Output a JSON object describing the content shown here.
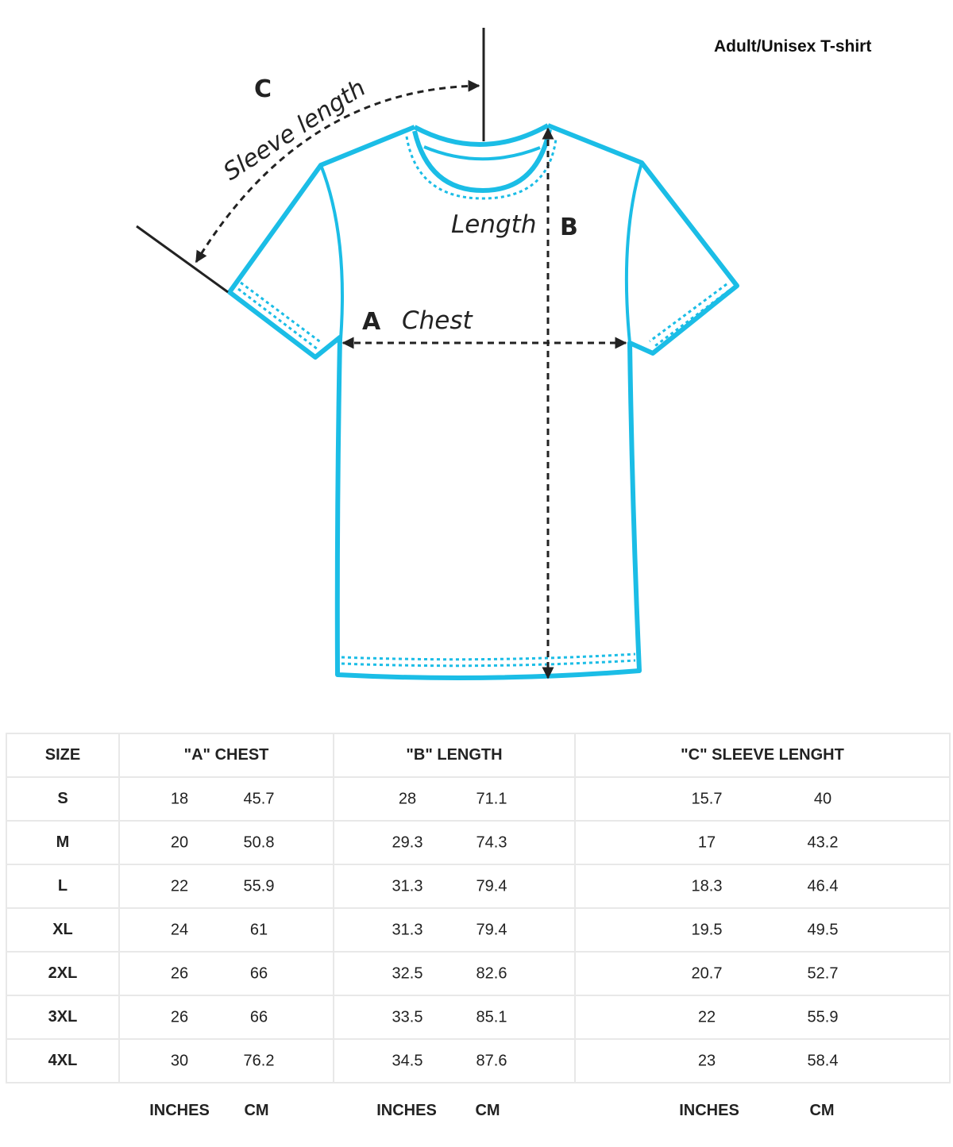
{
  "title": "Adult/Unisex T-shirt",
  "colors": {
    "shirt_outline": "#1bbde6",
    "annotation": "#222222",
    "grid": "#e8e8e8"
  },
  "diagram": {
    "a_letter": "A",
    "a_label": "Chest",
    "b_letter": "B",
    "b_label": "Length",
    "c_letter": "C",
    "c_label": "Sleeve length"
  },
  "table": {
    "headers": [
      "SIZE",
      "\"A\" CHEST",
      "\"B\" LENGTH",
      "\"C\" SLEEVE LENGHT"
    ],
    "rows": [
      {
        "size": "S",
        "chest_in": "18",
        "chest_cm": "45.7",
        "length_in": "28",
        "length_cm": "71.1",
        "sleeve_in": "15.7",
        "sleeve_cm": "40"
      },
      {
        "size": "M",
        "chest_in": "20",
        "chest_cm": "50.8",
        "length_in": "29.3",
        "length_cm": "74.3",
        "sleeve_in": "17",
        "sleeve_cm": "43.2"
      },
      {
        "size": "L",
        "chest_in": "22",
        "chest_cm": "55.9",
        "length_in": "31.3",
        "length_cm": "79.4",
        "sleeve_in": "18.3",
        "sleeve_cm": "46.4"
      },
      {
        "size": "XL",
        "chest_in": "24",
        "chest_cm": "61",
        "length_in": "31.3",
        "length_cm": "79.4",
        "sleeve_in": "19.5",
        "sleeve_cm": "49.5"
      },
      {
        "size": "2XL",
        "chest_in": "26",
        "chest_cm": "66",
        "length_in": "32.5",
        "length_cm": "82.6",
        "sleeve_in": "20.7",
        "sleeve_cm": "52.7"
      },
      {
        "size": "3XL",
        "chest_in": "26",
        "chest_cm": "66",
        "length_in": "33.5",
        "length_cm": "85.1",
        "sleeve_in": "22",
        "sleeve_cm": "55.9"
      },
      {
        "size": "4XL",
        "chest_in": "30",
        "chest_cm": "76.2",
        "length_in": "34.5",
        "length_cm": "87.6",
        "sleeve_in": "23",
        "sleeve_cm": "58.4"
      }
    ],
    "units": {
      "inches": "INCHES",
      "cm": "CM"
    }
  }
}
